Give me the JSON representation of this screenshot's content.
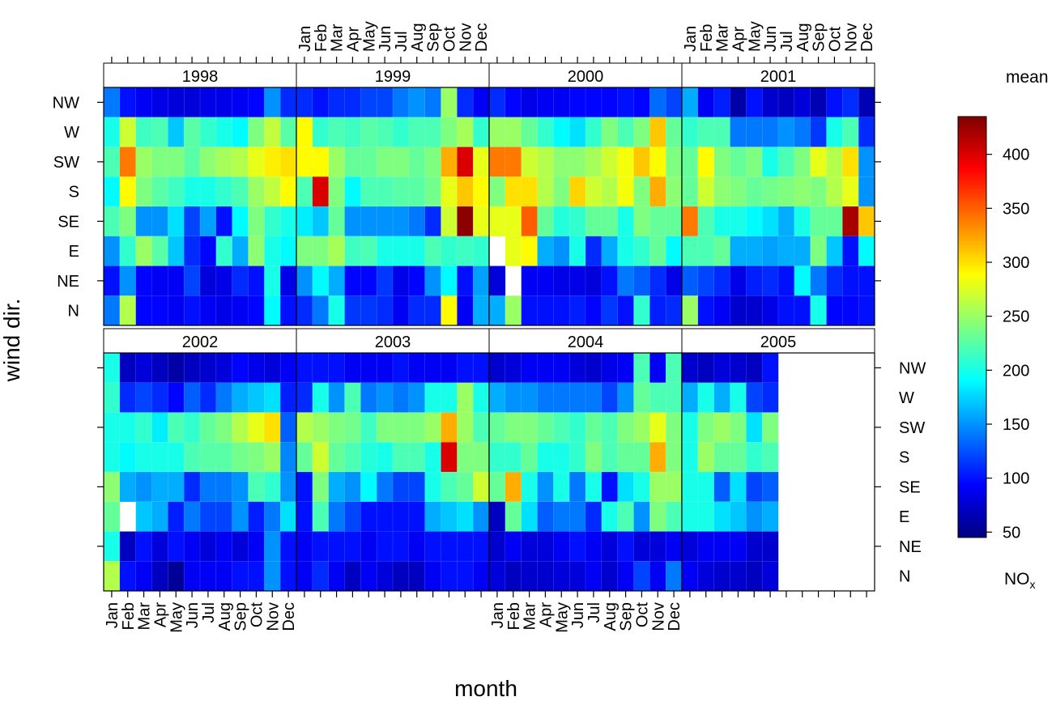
{
  "chart_data": {
    "type": "heatmap",
    "xlabel": "month",
    "ylabel": "wind dir.",
    "months": [
      "Jan",
      "Feb",
      "Mar",
      "Apr",
      "May",
      "Jun",
      "Jul",
      "Aug",
      "Sep",
      "Oct",
      "Nov",
      "Dec"
    ],
    "wind_directions": [
      "NW",
      "W",
      "SW",
      "S",
      "SE",
      "E",
      "NE",
      "N"
    ],
    "legend": {
      "title": "mean",
      "pollutant": "NO",
      "pollutant_subscript": "x",
      "ticks": [
        50,
        100,
        150,
        200,
        250,
        300,
        350,
        400
      ],
      "range": [
        45,
        435
      ],
      "palette": [
        "#00007F",
        "#0000FF",
        "#007FFF",
        "#00FFFF",
        "#7FFF7F",
        "#FFFF00",
        "#FF7F00",
        "#FF0000",
        "#7F0000"
      ],
      "placement": "right"
    },
    "panels": [
      {
        "year": "1998",
        "values": [
          [
            140,
            100,
            90,
            85,
            80,
            80,
            85,
            85,
            90,
            95,
            150,
            110
          ],
          [
            200,
            270,
            215,
            220,
            170,
            225,
            210,
            200,
            190,
            240,
            265,
            225
          ],
          [
            220,
            340,
            250,
            240,
            240,
            225,
            245,
            255,
            260,
            280,
            295,
            300
          ],
          [
            190,
            290,
            240,
            225,
            215,
            200,
            200,
            210,
            220,
            250,
            265,
            290
          ],
          [
            220,
            240,
            150,
            150,
            180,
            120,
            155,
            100,
            190,
            240,
            210,
            200
          ],
          [
            150,
            210,
            250,
            225,
            170,
            110,
            95,
            210,
            160,
            245,
            200,
            190
          ],
          [
            100,
            150,
            95,
            90,
            90,
            120,
            80,
            85,
            110,
            100,
            200,
            85
          ],
          [
            140,
            260,
            95,
            95,
            90,
            100,
            90,
            85,
            90,
            95,
            190,
            100
          ]
        ]
      },
      {
        "year": "1999",
        "values": [
          [
            110,
            100,
            110,
            110,
            120,
            120,
            140,
            150,
            140,
            250,
            110,
            90
          ],
          [
            290,
            210,
            220,
            215,
            225,
            220,
            210,
            220,
            220,
            240,
            255,
            210
          ],
          [
            290,
            290,
            250,
            230,
            230,
            240,
            240,
            230,
            240,
            320,
            400,
            280
          ],
          [
            220,
            400,
            240,
            190,
            220,
            220,
            225,
            225,
            235,
            280,
            310,
            290
          ],
          [
            185,
            170,
            230,
            150,
            150,
            150,
            150,
            140,
            110,
            270,
            430,
            280
          ],
          [
            240,
            240,
            255,
            215,
            220,
            200,
            200,
            200,
            220,
            210,
            215,
            210
          ],
          [
            150,
            190,
            160,
            95,
            95,
            115,
            85,
            95,
            150,
            190,
            100,
            155
          ],
          [
            110,
            140,
            200,
            115,
            115,
            110,
            90,
            110,
            110,
            290,
            90,
            160
          ]
        ]
      },
      {
        "year": "2000",
        "values": [
          [
            110,
            95,
            85,
            90,
            90,
            95,
            95,
            95,
            100,
            95,
            135,
            120
          ],
          [
            250,
            250,
            230,
            210,
            190,
            180,
            210,
            240,
            220,
            240,
            310,
            230
          ],
          [
            340,
            340,
            270,
            260,
            245,
            245,
            255,
            270,
            285,
            310,
            290,
            240
          ],
          [
            240,
            300,
            300,
            260,
            240,
            305,
            270,
            260,
            285,
            240,
            320,
            245
          ],
          [
            280,
            280,
            350,
            230,
            205,
            210,
            230,
            230,
            200,
            240,
            230,
            230
          ],
          [
            null,
            280,
            290,
            160,
            150,
            200,
            110,
            160,
            200,
            210,
            230,
            190
          ],
          [
            80,
            null,
            90,
            90,
            85,
            85,
            80,
            100,
            140,
            130,
            110,
            85
          ],
          [
            160,
            250,
            100,
            100,
            100,
            105,
            95,
            115,
            100,
            210,
            105,
            110
          ]
        ]
      },
      {
        "year": "2001",
        "values": [
          [
            160,
            90,
            105,
            60,
            100,
            75,
            70,
            80,
            65,
            100,
            110,
            65
          ],
          [
            210,
            220,
            220,
            140,
            140,
            140,
            150,
            140,
            115,
            200,
            220,
            110
          ],
          [
            230,
            290,
            240,
            230,
            240,
            200,
            220,
            240,
            280,
            260,
            300,
            150
          ],
          [
            230,
            270,
            245,
            240,
            230,
            235,
            240,
            245,
            240,
            260,
            280,
            150
          ],
          [
            340,
            220,
            200,
            200,
            190,
            180,
            160,
            200,
            230,
            230,
            420,
            310
          ],
          [
            220,
            220,
            230,
            160,
            160,
            155,
            160,
            160,
            240,
            170,
            100,
            190
          ],
          [
            130,
            120,
            110,
            85,
            105,
            110,
            100,
            190,
            140,
            110,
            100,
            100
          ],
          [
            250,
            100,
            90,
            75,
            75,
            85,
            100,
            100,
            200,
            95,
            95,
            100
          ]
        ]
      },
      {
        "year": "2002",
        "values": [
          [
            200,
            70,
            80,
            70,
            60,
            70,
            75,
            80,
            95,
            85,
            80,
            90
          ],
          [
            210,
            110,
            120,
            110,
            95,
            130,
            110,
            140,
            160,
            170,
            180,
            105
          ],
          [
            200,
            200,
            210,
            185,
            220,
            210,
            230,
            240,
            260,
            280,
            300,
            130
          ],
          [
            200,
            190,
            200,
            200,
            200,
            220,
            225,
            225,
            235,
            240,
            250,
            145
          ],
          [
            245,
            160,
            150,
            160,
            160,
            110,
            140,
            140,
            150,
            220,
            210,
            150
          ],
          [
            230,
            null,
            170,
            160,
            105,
            140,
            120,
            120,
            150,
            105,
            140,
            180
          ],
          [
            200,
            70,
            100,
            80,
            100,
            90,
            80,
            90,
            80,
            90,
            150,
            100
          ],
          [
            260,
            100,
            90,
            70,
            55,
            90,
            90,
            90,
            100,
            100,
            150,
            100
          ]
        ]
      },
      {
        "year": "2003",
        "values": [
          [
            100,
            100,
            100,
            90,
            90,
            90,
            100,
            90,
            90,
            90,
            100,
            100
          ],
          [
            110,
            200,
            150,
            220,
            140,
            150,
            140,
            150,
            200,
            200,
            250,
            200
          ],
          [
            260,
            250,
            240,
            235,
            215,
            240,
            240,
            240,
            250,
            320,
            250,
            220
          ],
          [
            230,
            270,
            230,
            220,
            205,
            200,
            220,
            220,
            200,
            400,
            240,
            240
          ],
          [
            100,
            240,
            160,
            150,
            190,
            140,
            120,
            120,
            200,
            220,
            230,
            270
          ],
          [
            100,
            220,
            140,
            120,
            100,
            100,
            100,
            100,
            160,
            170,
            180,
            150
          ],
          [
            90,
            100,
            100,
            100,
            90,
            100,
            100,
            90,
            100,
            100,
            100,
            100
          ],
          [
            90,
            110,
            90,
            70,
            90,
            80,
            70,
            70,
            90,
            100,
            100,
            90
          ]
        ]
      },
      {
        "year": "2004",
        "values": [
          [
            75,
            80,
            90,
            90,
            90,
            80,
            75,
            85,
            90,
            220,
            90,
            220
          ],
          [
            160,
            150,
            150,
            140,
            140,
            140,
            140,
            120,
            150,
            230,
            220,
            220
          ],
          [
            230,
            240,
            240,
            230,
            220,
            210,
            230,
            220,
            240,
            250,
            280,
            240
          ],
          [
            210,
            210,
            230,
            200,
            200,
            210,
            240,
            220,
            230,
            230,
            320,
            240
          ],
          [
            230,
            320,
            200,
            150,
            200,
            140,
            200,
            100,
            180,
            200,
            250,
            250
          ],
          [
            70,
            230,
            180,
            130,
            140,
            140,
            110,
            200,
            220,
            150,
            240,
            220
          ],
          [
            75,
            90,
            80,
            80,
            90,
            100,
            90,
            80,
            100,
            80,
            80,
            90
          ],
          [
            80,
            70,
            75,
            75,
            80,
            80,
            90,
            75,
            90,
            120,
            90,
            140
          ]
        ]
      },
      {
        "year": "2005",
        "values": [
          [
            75,
            70,
            80,
            75,
            70,
            100,
            null,
            null,
            null,
            null,
            null,
            null
          ],
          [
            160,
            200,
            160,
            200,
            120,
            110,
            null,
            null,
            null,
            null,
            null,
            null
          ],
          [
            200,
            240,
            250,
            240,
            180,
            240,
            null,
            null,
            null,
            null,
            null,
            null
          ],
          [
            200,
            250,
            230,
            230,
            210,
            220,
            null,
            null,
            null,
            null,
            null,
            null
          ],
          [
            200,
            200,
            130,
            180,
            120,
            130,
            null,
            null,
            null,
            null,
            null,
            null
          ],
          [
            200,
            200,
            180,
            170,
            150,
            160,
            null,
            null,
            null,
            null,
            null,
            null
          ],
          [
            80,
            90,
            90,
            90,
            75,
            75,
            null,
            null,
            null,
            null,
            null,
            null
          ],
          [
            90,
            80,
            75,
            75,
            70,
            80,
            null,
            null,
            null,
            null,
            null,
            null
          ]
        ]
      }
    ]
  }
}
